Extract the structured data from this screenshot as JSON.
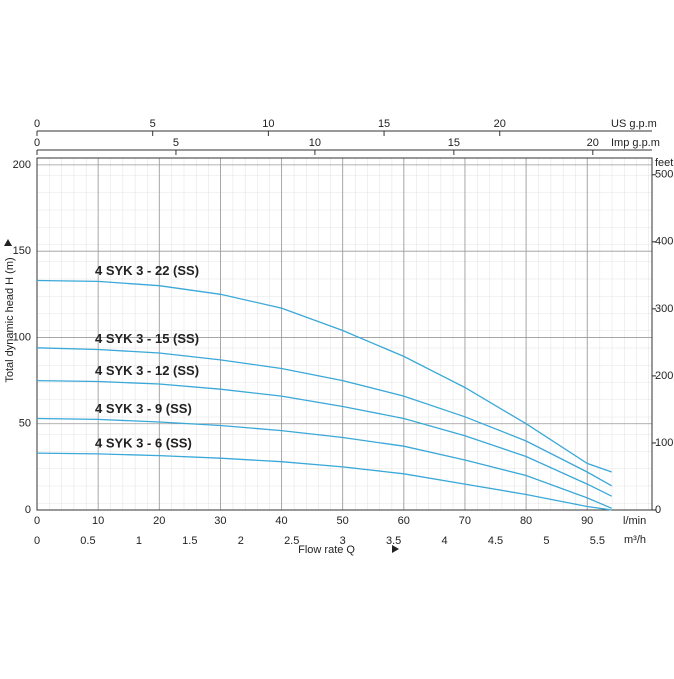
{
  "chart_data": {
    "type": "line",
    "xlabel": "Flow rate Q",
    "ylabel": "Total dynamic head H (m)",
    "x_unit": "l/min",
    "x": [
      0,
      10,
      20,
      30,
      40,
      50,
      60,
      70,
      80,
      90,
      94
    ],
    "xlim": [
      0,
      100.6
    ],
    "xticks": [
      0,
      10,
      20,
      30,
      40,
      50,
      60,
      70,
      80,
      90
    ],
    "ylim": [
      0,
      204
    ],
    "yticks": [
      0,
      50,
      100,
      150,
      200
    ],
    "y2label": "feet",
    "y2lim": [
      0,
      525
    ],
    "y2ticks": [
      0,
      100,
      200,
      300,
      400,
      500
    ],
    "extra_x_axes": [
      {
        "label": "m³/h",
        "position": "bottom",
        "xlim": [
          0,
          6.036
        ],
        "xticks": [
          0,
          0.5,
          1,
          1.5,
          2,
          2.5,
          3,
          3.5,
          4,
          4.5,
          5,
          5.5
        ]
      },
      {
        "label": "US g.p.m",
        "position": "top",
        "xlim": [
          0,
          26.58
        ],
        "xticks": [
          0,
          5,
          10,
          15,
          20
        ]
      },
      {
        "label": "Imp g.p.m",
        "position": "top",
        "xlim": [
          0,
          22.13
        ],
        "xticks": [
          0,
          5,
          10,
          15,
          20
        ]
      }
    ],
    "grid": true,
    "color": "#3aa8d8",
    "series": [
      {
        "name": "4 SYK 3 - 22  (SS)",
        "values": [
          133,
          132.5,
          130,
          125,
          117,
          104,
          89,
          71,
          50,
          27,
          22
        ]
      },
      {
        "name": "4 SYK 3 - 15 (SS)",
        "values": [
          94,
          93,
          91,
          87,
          82,
          75,
          66,
          54,
          40,
          22,
          14
        ]
      },
      {
        "name": "4 SYK 3 - 12 (SS)",
        "values": [
          75,
          74.5,
          73,
          70,
          66,
          60,
          53,
          43,
          31,
          15,
          8
        ]
      },
      {
        "name": "4 SYK 3 - 9 (SS)",
        "values": [
          53,
          52.5,
          51,
          49,
          46,
          42,
          37,
          29,
          20,
          7,
          1
        ]
      },
      {
        "name": "4 SYK 3 - 6 (SS)",
        "values": [
          33,
          32.5,
          31.5,
          30,
          28,
          25,
          21,
          15,
          9,
          2,
          0
        ]
      }
    ]
  }
}
